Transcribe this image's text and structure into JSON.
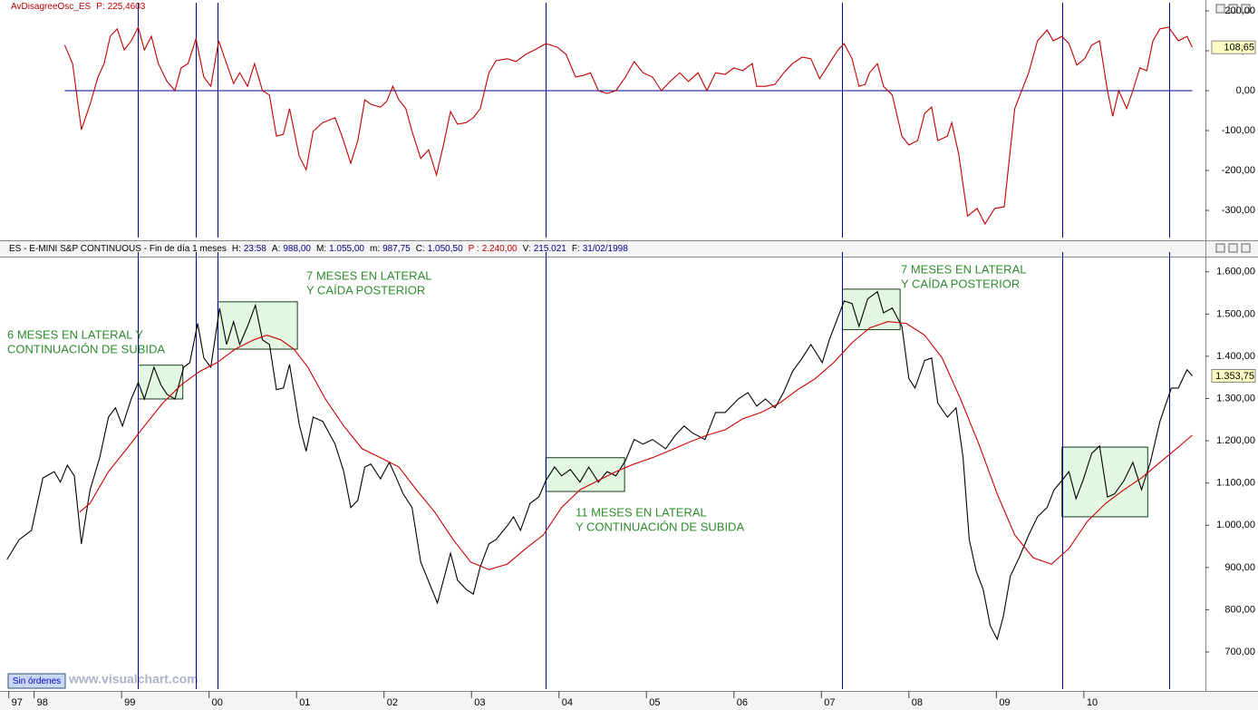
{
  "chart_data": [
    {
      "type": "line",
      "title": "AvDisagreeOsc_ES",
      "title_color": "#b00000",
      "info": [
        {
          "label": "P:",
          "value": "225,4603",
          "color": "#c00000"
        }
      ],
      "xlim": [
        1997.61,
        2011.39
      ],
      "ylim": [
        -368,
        209
      ],
      "yticks": [
        {
          "value": -300,
          "label": "-300,00"
        },
        {
          "value": -200,
          "label": "-200,00"
        },
        {
          "value": -100,
          "label": "-100,00"
        },
        {
          "value": 0,
          "label": "0,00"
        },
        {
          "value": 100,
          "label": "100,00"
        },
        {
          "value": 200,
          "label": "200,00"
        }
      ],
      "hline": 0,
      "hline_color": "#00008b",
      "vlines": [
        1999.19,
        1999.85,
        2000.1,
        2003.85,
        2007.24,
        2009.75,
        2010.98
      ],
      "vline_color": "#00008b",
      "series": [
        {
          "color": "#c00000",
          "last_label": "108,65",
          "x": [
            1998.35,
            1998.44,
            1998.54,
            1998.64,
            1998.73,
            1998.8,
            1998.87,
            1998.95,
            1999.03,
            1999.11,
            1999.19,
            1999.26,
            1999.34,
            1999.42,
            1999.52,
            1999.61,
            1999.68,
            1999.76,
            1999.85,
            1999.94,
            2000.02,
            2000.11,
            2000.2,
            2000.28,
            2000.35,
            2000.44,
            2000.52,
            2000.61,
            2000.69,
            2000.77,
            2000.85,
            2000.92,
            2001.03,
            2001.11,
            2001.19,
            2001.3,
            2001.44,
            2001.52,
            2001.62,
            2001.7,
            2001.78,
            2001.85,
            2001.96,
            2002.03,
            2002.1,
            2002.17,
            2002.25,
            2002.32,
            2002.42,
            2002.51,
            2002.6,
            2002.68,
            2002.76,
            2002.84,
            2002.94,
            2003.02,
            2003.1,
            2003.2,
            2003.28,
            2003.41,
            2003.51,
            2003.62,
            2003.72,
            2003.85,
            2003.98,
            2004.08,
            2004.19,
            2004.29,
            2004.36,
            2004.45,
            2004.55,
            2004.65,
            2004.76,
            2004.86,
            2004.96,
            2005.07,
            2005.17,
            2005.27,
            2005.38,
            2005.48,
            2005.59,
            2005.69,
            2005.79,
            2005.9,
            2006.0,
            2006.1,
            2006.21,
            2006.26,
            2006.36,
            2006.47,
            2006.57,
            2006.67,
            2006.78,
            2006.88,
            2006.98,
            2007.09,
            2007.19,
            2007.26,
            2007.35,
            2007.43,
            2007.5,
            2007.55,
            2007.64,
            2007.71,
            2007.81,
            2007.92,
            2008.0,
            2008.1,
            2008.18,
            2008.26,
            2008.33,
            2008.44,
            2008.49,
            2008.57,
            2008.67,
            2008.78,
            2008.87,
            2008.98,
            2009.09,
            2009.21,
            2009.37,
            2009.47,
            2009.58,
            2009.65,
            2009.75,
            2009.83,
            2009.92,
            2010.01,
            2010.09,
            2010.18,
            2010.27,
            2010.33,
            2010.4,
            2010.49,
            2010.56,
            2010.64,
            2010.72,
            2010.79,
            2010.87,
            2010.97,
            2011.08,
            2011.18,
            2011.24
          ],
          "values": [
            114,
            68,
            -98,
            -34,
            34,
            68,
            136,
            155,
            102,
            125,
            159,
            102,
            136,
            68,
            23,
            0,
            57,
            68,
            130,
            34,
            11,
            125,
            68,
            18,
            45,
            11,
            68,
            0,
            -11,
            -114,
            -109,
            -45,
            -164,
            -198,
            -102,
            -80,
            -68,
            -114,
            -182,
            -125,
            -23,
            -34,
            -41,
            -27,
            11,
            -23,
            -45,
            -102,
            -170,
            -148,
            -211,
            -136,
            -52,
            -84,
            -80,
            -68,
            -45,
            45,
            75,
            80,
            73,
            91,
            102,
            118,
            109,
            91,
            34,
            39,
            45,
            0,
            -7,
            0,
            34,
            73,
            45,
            34,
            0,
            23,
            45,
            23,
            45,
            0,
            45,
            41,
            57,
            50,
            68,
            11,
            11,
            16,
            45,
            68,
            84,
            80,
            30,
            68,
            102,
            118,
            80,
            11,
            16,
            45,
            68,
            11,
            -11,
            -114,
            -136,
            -125,
            -57,
            -41,
            -125,
            -114,
            -80,
            -159,
            -314,
            -295,
            -334,
            -295,
            -291,
            -45,
            45,
            125,
            152,
            125,
            136,
            118,
            64,
            80,
            114,
            125,
            0,
            -64,
            0,
            -45,
            0,
            57,
            50,
            125,
            155,
            159,
            125,
            136,
            108.65
          ]
        }
      ]
    },
    {
      "type": "line",
      "title": "ES - E-MINI S&P CONTINUOUS - Fin de día 1 meses",
      "title_color": "#000000",
      "info": [
        {
          "label": "H:",
          "value": "23:58",
          "color": "#00008b"
        },
        {
          "label": "A:",
          "value": "988,00",
          "color": "#00008b"
        },
        {
          "label": "M:",
          "value": "1.055,00",
          "color": "#00008b"
        },
        {
          "label": "m:",
          "value": "987,75",
          "color": "#00008b"
        },
        {
          "label": "C:",
          "value": "1.050,50",
          "color": "#00008b"
        },
        {
          "label": "P :",
          "value": "2.240,00",
          "color": "#c00000"
        },
        {
          "label": "V:",
          "value": "215.021",
          "color": "#00008b"
        },
        {
          "label": "F:",
          "value": "31/02/1998",
          "color": "#00008b"
        }
      ],
      "xlim": [
        1997.61,
        2011.39
      ],
      "xticks": [
        {
          "value": 1997.71,
          "label": "97"
        },
        {
          "value": 1998,
          "label": "98"
        },
        {
          "value": 1999,
          "label": "99"
        },
        {
          "value": 2000,
          "label": "00"
        },
        {
          "value": 2001,
          "label": "01"
        },
        {
          "value": 2002,
          "label": "02"
        },
        {
          "value": 2003,
          "label": "03"
        },
        {
          "value": 2004,
          "label": "04"
        },
        {
          "value": 2005,
          "label": "05"
        },
        {
          "value": 2006,
          "label": "06"
        },
        {
          "value": 2007,
          "label": "07"
        },
        {
          "value": 2008,
          "label": "08"
        },
        {
          "value": 2009,
          "label": "09"
        },
        {
          "value": 2010,
          "label": "10"
        }
      ],
      "ylim": [
        612,
        1636
      ],
      "yticks": [
        {
          "value": 700,
          "label": "700,00"
        },
        {
          "value": 800,
          "label": "800,00"
        },
        {
          "value": 900,
          "label": "900,00"
        },
        {
          "value": 1000,
          "label": "1.000,00"
        },
        {
          "value": 1100,
          "label": "1.100,00"
        },
        {
          "value": 1200,
          "label": "1.200,00"
        },
        {
          "value": 1300,
          "label": "1.300,00"
        },
        {
          "value": 1400,
          "label": "1.400,00"
        },
        {
          "value": 1500,
          "label": "1.500,00"
        },
        {
          "value": 1600,
          "label": "1.600,00"
        }
      ],
      "vlines": [
        1999.19,
        1999.85,
        2000.1,
        2003.85,
        2007.24,
        2009.75,
        2010.98
      ],
      "vline_color": "#00008b",
      "boxes": [
        {
          "x": [
            1999.19,
            1999.7
          ],
          "y": [
            1299,
            1379
          ]
        },
        {
          "x": [
            2000.1,
            2001.01
          ],
          "y": [
            1417,
            1529
          ]
        },
        {
          "x": [
            2003.85,
            2004.75
          ],
          "y": [
            1080,
            1160
          ]
        },
        {
          "x": [
            2007.24,
            2007.9
          ],
          "y": [
            1463,
            1559
          ]
        },
        {
          "x": [
            2009.75,
            2010.73
          ],
          "y": [
            1020,
            1185
          ]
        }
      ],
      "box_fill": "#e2f8e2",
      "box_stroke": "#1a3a1a",
      "annotations": [
        {
          "lines": [
            "6 MESES EN LATERAL Y",
            "CONTINUACIÓN DE SUBIDA"
          ]
        },
        {
          "lines": [
            "7 MESES EN LATERAL",
            "Y CAÍDA POSTERIOR"
          ]
        },
        {
          "lines": [
            "11 MESES EN LATERAL",
            "Y CONTINUACIÓN DE SUBIDA"
          ]
        },
        {
          "lines": [
            "7 MESES EN LATERAL",
            "Y CAÍDA POSTERIOR"
          ]
        }
      ],
      "annotation_color": "#2e8b2e",
      "series": [
        {
          "color": "#000000",
          "last_label": "1.353,75",
          "x": [
            1997.69,
            1997.83,
            1997.97,
            1998.1,
            1998.23,
            1998.3,
            1998.38,
            1998.46,
            1998.54,
            1998.64,
            1998.75,
            1998.85,
            1998.93,
            1999.01,
            1999.11,
            1999.19,
            1999.26,
            1999.37,
            1999.45,
            1999.52,
            1999.61,
            1999.71,
            1999.78,
            1999.87,
            1999.94,
            2000.02,
            2000.12,
            2000.2,
            2000.28,
            2000.35,
            2000.44,
            2000.53,
            2000.61,
            2000.69,
            2000.77,
            2000.85,
            2000.92,
            2001.03,
            2001.11,
            2001.19,
            2001.3,
            2001.44,
            2001.54,
            2001.62,
            2001.7,
            2001.78,
            2001.85,
            2001.96,
            2002.06,
            2002.13,
            2002.22,
            2002.32,
            2002.42,
            2002.61,
            2002.68,
            2002.76,
            2002.84,
            2002.94,
            2003.02,
            2003.1,
            2003.2,
            2003.28,
            2003.41,
            2003.48,
            2003.56,
            2003.67,
            2003.77,
            2003.85,
            2003.95,
            2004.03,
            2004.13,
            2004.24,
            2004.34,
            2004.45,
            2004.55,
            2004.65,
            2004.76,
            2004.86,
            2004.96,
            2005.07,
            2005.22,
            2005.33,
            2005.43,
            2005.53,
            2005.67,
            2005.79,
            2005.9,
            2006.05,
            2006.16,
            2006.26,
            2006.36,
            2006.47,
            2006.57,
            2006.67,
            2006.78,
            2006.88,
            2007.01,
            2007.09,
            2007.17,
            2007.26,
            2007.35,
            2007.43,
            2007.53,
            2007.64,
            2007.71,
            2007.81,
            2007.92,
            2008.0,
            2008.07,
            2008.18,
            2008.26,
            2008.33,
            2008.44,
            2008.54,
            2008.62,
            2008.69,
            2008.77,
            2008.85,
            2008.93,
            2009.01,
            2009.08,
            2009.16,
            2009.26,
            2009.37,
            2009.47,
            2009.58,
            2009.66,
            2009.75,
            2009.83,
            2009.91,
            2009.99,
            2010.09,
            2010.18,
            2010.27,
            2010.35,
            2010.46,
            2010.56,
            2010.66,
            2010.76,
            2010.87,
            2011.0,
            2011.08,
            2011.18,
            2011.24
          ],
          "values": [
            919,
            966,
            988,
            1112,
            1127,
            1102,
            1142,
            1117,
            956,
            1084,
            1160,
            1256,
            1278,
            1235,
            1299,
            1338,
            1299,
            1374,
            1332,
            1310,
            1299,
            1374,
            1385,
            1478,
            1396,
            1374,
            1514,
            1428,
            1482,
            1428,
            1471,
            1521,
            1439,
            1428,
            1321,
            1325,
            1381,
            1239,
            1175,
            1256,
            1246,
            1192,
            1127,
            1042,
            1059,
            1138,
            1145,
            1110,
            1149,
            1117,
            1074,
            1042,
            913,
            816,
            870,
            934,
            870,
            848,
            837,
            902,
            956,
            966,
            999,
            1020,
            988,
            1052,
            1067,
            1106,
            1138,
            1117,
            1132,
            1102,
            1138,
            1102,
            1127,
            1117,
            1153,
            1203,
            1192,
            1203,
            1181,
            1213,
            1235,
            1218,
            1203,
            1267,
            1267,
            1299,
            1314,
            1282,
            1299,
            1278,
            1316,
            1364,
            1396,
            1428,
            1385,
            1439,
            1482,
            1531,
            1525,
            1471,
            1536,
            1553,
            1503,
            1514,
            1471,
            1347,
            1325,
            1390,
            1396,
            1289,
            1256,
            1278,
            1160,
            966,
            891,
            848,
            762,
            730,
            784,
            880,
            923,
            977,
            1020,
            1042,
            1084,
            1106,
            1127,
            1063,
            1106,
            1170,
            1188,
            1067,
            1074,
            1106,
            1149,
            1084,
            1149,
            1246,
            1325,
            1325,
            1368,
            1353.75
          ]
        },
        {
          "color": "#cc0000",
          "x": [
            1998.52,
            1998.64,
            1998.85,
            1999.06,
            1999.26,
            1999.47,
            1999.68,
            1999.89,
            2000.09,
            2000.3,
            2000.51,
            2000.66,
            2000.82,
            2000.97,
            2001.13,
            2001.33,
            2001.54,
            2001.75,
            2001.96,
            2002.17,
            2002.37,
            2002.58,
            2002.79,
            2002.99,
            2003.2,
            2003.41,
            2003.62,
            2003.82,
            2004.03,
            2004.24,
            2004.45,
            2004.65,
            2004.86,
            2005.07,
            2005.27,
            2005.48,
            2005.69,
            2005.9,
            2006.1,
            2006.31,
            2006.52,
            2006.73,
            2006.93,
            2007.14,
            2007.35,
            2007.55,
            2007.76,
            2007.97,
            2008.18,
            2008.38,
            2008.59,
            2008.8,
            2009.01,
            2009.21,
            2009.42,
            2009.63,
            2009.83,
            2010.04,
            2010.25,
            2010.46,
            2010.66,
            2010.87,
            2011.08,
            2011.24
          ],
          "values": [
            1031,
            1052,
            1127,
            1181,
            1235,
            1289,
            1332,
            1364,
            1385,
            1417,
            1439,
            1450,
            1439,
            1417,
            1374,
            1299,
            1235,
            1181,
            1160,
            1138,
            1084,
            1031,
            966,
            913,
            895,
            908,
            945,
            977,
            1042,
            1084,
            1106,
            1127,
            1145,
            1160,
            1177,
            1196,
            1213,
            1226,
            1252,
            1267,
            1289,
            1321,
            1347,
            1385,
            1432,
            1467,
            1482,
            1478,
            1450,
            1396,
            1299,
            1192,
            1074,
            977,
            923,
            908,
            945,
            1009,
            1052,
            1084,
            1112,
            1149,
            1185,
            1213
          ]
        }
      ]
    }
  ],
  "footer": {
    "button": "Sin órdenes",
    "watermark": "www.visualchart.com"
  }
}
